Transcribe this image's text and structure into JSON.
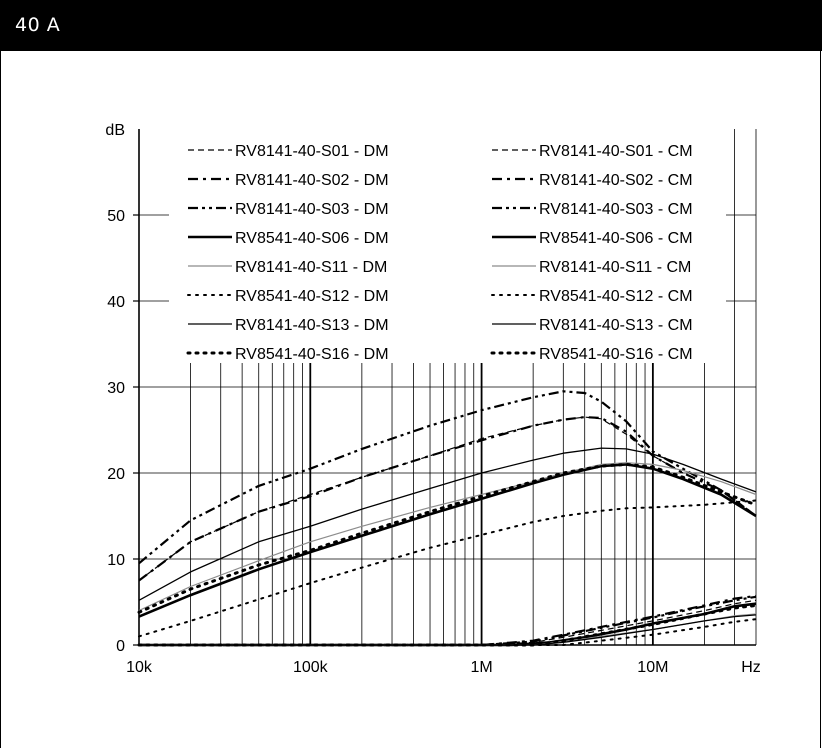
{
  "header": {
    "title": "40 A"
  },
  "chart_data": {
    "type": "line",
    "title": "",
    "xlabel": "Hz",
    "ylabel": "dB",
    "xscale": "log",
    "xlim": [
      10000,
      40000000
    ],
    "ylim": [
      0,
      60
    ],
    "x_ticks": [
      {
        "value": 10000,
        "label": "10k"
      },
      {
        "value": 100000,
        "label": "100k"
      },
      {
        "value": 1000000,
        "label": "1M"
      },
      {
        "value": 10000000,
        "label": "10M"
      }
    ],
    "y_ticks": [
      {
        "value": 0,
        "label": "0"
      },
      {
        "value": 10,
        "label": "10"
      },
      {
        "value": 20,
        "label": "20"
      },
      {
        "value": 30,
        "label": "30"
      },
      {
        "value": 40,
        "label": "40"
      },
      {
        "value": 50,
        "label": "50"
      }
    ],
    "grid": true,
    "legend_position": "top",
    "series": [
      {
        "name": "RV8141-40-S01 - DM",
        "style": "dash",
        "width": 1.2,
        "color": "#000000",
        "points": [
          [
            10000,
            7.5
          ],
          [
            20000,
            12
          ],
          [
            50000,
            15.5
          ],
          [
            100000,
            17.5
          ],
          [
            200000,
            19.5
          ],
          [
            500000,
            22
          ],
          [
            1000000,
            24
          ],
          [
            2000000,
            25.5
          ],
          [
            3000000,
            26.2
          ],
          [
            4000000,
            26.5
          ],
          [
            5000000,
            26.3
          ],
          [
            7000000,
            24.5
          ],
          [
            10000000,
            22
          ],
          [
            15000000,
            20
          ],
          [
            20000,
            12
          ]
        ]
      },
      {
        "name": "RV8141-40-S02 - DM",
        "style": "dashdot",
        "width": 2.2,
        "color": "#000000",
        "points": [
          [
            10000,
            7.5
          ],
          [
            20000,
            12
          ],
          [
            50000,
            15.5
          ],
          [
            100000,
            17.3
          ],
          [
            200000,
            19.5
          ],
          [
            500000,
            22
          ],
          [
            1000000,
            23.8
          ],
          [
            2000000,
            25.5
          ],
          [
            3000000,
            26.2
          ],
          [
            4000000,
            26.5
          ],
          [
            5000000,
            26.4
          ],
          [
            7000000,
            24.8
          ],
          [
            10000000,
            22
          ],
          [
            15000000,
            20
          ],
          [
            25000000,
            18
          ],
          [
            40000000,
            15
          ]
        ]
      },
      {
        "name": "RV8141-40-S03 - DM",
        "style": "dashdotdot",
        "width": 2.2,
        "color": "#000000",
        "points": [
          [
            10000,
            9.5
          ],
          [
            20000,
            14.5
          ],
          [
            50000,
            18.5
          ],
          [
            100000,
            20.5
          ],
          [
            200000,
            22.8
          ],
          [
            500000,
            25.5
          ],
          [
            1000000,
            27.3
          ],
          [
            2000000,
            28.8
          ],
          [
            3000000,
            29.5
          ],
          [
            4000000,
            29.3
          ],
          [
            5000000,
            28.3
          ],
          [
            7000000,
            26
          ],
          [
            10000000,
            22.5
          ],
          [
            15000000,
            20.5
          ],
          [
            25000000,
            18
          ],
          [
            40000000,
            15
          ]
        ]
      },
      {
        "name": "RV8541-40-S06 - DM",
        "style": "solid",
        "width": 2.6,
        "color": "#000000",
        "points": [
          [
            10000,
            3.3
          ],
          [
            20000,
            5.8
          ],
          [
            50000,
            8.8
          ],
          [
            100000,
            10.8
          ],
          [
            200000,
            12.7
          ],
          [
            500000,
            15.2
          ],
          [
            1000000,
            17
          ],
          [
            2000000,
            18.8
          ],
          [
            3000000,
            19.8
          ],
          [
            5000000,
            20.8
          ],
          [
            7000000,
            21
          ],
          [
            10000000,
            20.5
          ],
          [
            15000000,
            19.3
          ],
          [
            25000000,
            17.5
          ],
          [
            40000000,
            15
          ]
        ]
      },
      {
        "name": "RV8141-40-S11 - DM",
        "style": "solid",
        "width": 1.2,
        "color": "#8c8c8c",
        "points": [
          [
            10000,
            4
          ],
          [
            20000,
            6.8
          ],
          [
            50000,
            9.8
          ],
          [
            100000,
            12
          ],
          [
            200000,
            13.8
          ],
          [
            500000,
            16
          ],
          [
            1000000,
            17.5
          ],
          [
            2000000,
            19
          ],
          [
            3000000,
            20
          ],
          [
            5000000,
            21
          ],
          [
            7000000,
            21.2
          ],
          [
            10000000,
            21
          ],
          [
            15000000,
            20.3
          ],
          [
            25000000,
            19
          ],
          [
            40000000,
            17.5
          ]
        ]
      },
      {
        "name": "RV8541-40-S12 - DM",
        "style": "dot",
        "width": 2.0,
        "color": "#000000",
        "points": [
          [
            10000,
            1
          ],
          [
            20000,
            2.8
          ],
          [
            50000,
            5.3
          ],
          [
            100000,
            7.2
          ],
          [
            200000,
            9
          ],
          [
            500000,
            11.3
          ],
          [
            1000000,
            12.8
          ],
          [
            2000000,
            14.3
          ],
          [
            3000000,
            15
          ],
          [
            5000000,
            15.6
          ],
          [
            7000000,
            15.9
          ],
          [
            10000000,
            16
          ],
          [
            20000000,
            16.3
          ],
          [
            40000000,
            16.8
          ]
        ]
      },
      {
        "name": "RV8141-40-S13 - DM",
        "style": "solid",
        "width": 1.3,
        "color": "#000000",
        "points": [
          [
            10000,
            5.2
          ],
          [
            20000,
            8.5
          ],
          [
            50000,
            12
          ],
          [
            100000,
            13.8
          ],
          [
            200000,
            15.8
          ],
          [
            500000,
            18.2
          ],
          [
            1000000,
            20
          ],
          [
            2000000,
            21.5
          ],
          [
            3000000,
            22.3
          ],
          [
            5000000,
            22.9
          ],
          [
            7000000,
            22.8
          ],
          [
            10000000,
            22.2
          ],
          [
            15000000,
            21
          ],
          [
            25000000,
            19.3
          ],
          [
            40000000,
            17.8
          ]
        ]
      },
      {
        "name": "RV8541-40-S16 - DM",
        "style": "dot",
        "width": 3.0,
        "color": "#000000",
        "points": [
          [
            10000,
            3.8
          ],
          [
            20000,
            6.5
          ],
          [
            50000,
            9.3
          ],
          [
            100000,
            11
          ],
          [
            200000,
            13
          ],
          [
            500000,
            15.5
          ],
          [
            1000000,
            17.3
          ],
          [
            2000000,
            19
          ],
          [
            3000000,
            20
          ],
          [
            5000000,
            20.8
          ],
          [
            7000000,
            21
          ],
          [
            10000000,
            20.7
          ],
          [
            15000000,
            19.5
          ],
          [
            25000000,
            17.8
          ],
          [
            40000000,
            16.3
          ]
        ]
      },
      {
        "name": "RV8141-40-S01 - CM",
        "style": "dash",
        "width": 1.2,
        "color": "#000000",
        "points": [
          [
            10000,
            0
          ],
          [
            1000000,
            0
          ],
          [
            2000000,
            0.3
          ],
          [
            3000000,
            0.9
          ],
          [
            5000000,
            1.7
          ],
          [
            10000000,
            2.8
          ],
          [
            20000000,
            4
          ],
          [
            30000000,
            4.8
          ],
          [
            40000000,
            5.2
          ]
        ]
      },
      {
        "name": "RV8141-40-S02 - CM",
        "style": "dashdot",
        "width": 2.2,
        "color": "#000000",
        "points": [
          [
            10000,
            0
          ],
          [
            1000000,
            0
          ],
          [
            2000000,
            0.5
          ],
          [
            3000000,
            1.2
          ],
          [
            5000000,
            2.1
          ],
          [
            10000000,
            3.3
          ],
          [
            20000000,
            4.6
          ],
          [
            30000000,
            5.4
          ],
          [
            40000000,
            5.7
          ]
        ]
      },
      {
        "name": "RV8141-40-S03 - CM",
        "style": "dashdotdot",
        "width": 2.2,
        "color": "#000000",
        "points": [
          [
            10000,
            0
          ],
          [
            1000000,
            0
          ],
          [
            2000000,
            0.4
          ],
          [
            3000000,
            1.1
          ],
          [
            5000000,
            2
          ],
          [
            10000000,
            3.2
          ],
          [
            20000000,
            4.5
          ],
          [
            30000000,
            5.2
          ],
          [
            40000000,
            5.6
          ]
        ]
      },
      {
        "name": "RV8541-40-S06 - CM",
        "style": "solid",
        "width": 2.6,
        "color": "#000000",
        "points": [
          [
            10000,
            0
          ],
          [
            1500000,
            0
          ],
          [
            2500000,
            0.3
          ],
          [
            4000000,
            0.9
          ],
          [
            7000000,
            1.8
          ],
          [
            10000000,
            2.5
          ],
          [
            20000000,
            3.6
          ],
          [
            30000000,
            4.5
          ],
          [
            40000000,
            4.8
          ]
        ]
      },
      {
        "name": "RV8141-40-S11 - CM",
        "style": "solid",
        "width": 1.2,
        "color": "#8c8c8c",
        "points": [
          [
            10000,
            0
          ],
          [
            2000000,
            0
          ],
          [
            3000000,
            0.4
          ],
          [
            5000000,
            1
          ],
          [
            10000000,
            1.8
          ],
          [
            20000000,
            2.8
          ],
          [
            30000000,
            3.4
          ],
          [
            40000000,
            3.6
          ]
        ]
      },
      {
        "name": "RV8541-40-S12 - CM",
        "style": "dot",
        "width": 2.0,
        "color": "#000000",
        "points": [
          [
            10000,
            0
          ],
          [
            3000000,
            0
          ],
          [
            5000000,
            0.5
          ],
          [
            10000000,
            1.2
          ],
          [
            20000000,
            2.1
          ],
          [
            30000000,
            2.7
          ],
          [
            40000000,
            3
          ]
        ]
      },
      {
        "name": "RV8141-40-S13 - CM",
        "style": "solid",
        "width": 1.3,
        "color": "#000000",
        "points": [
          [
            10000,
            0
          ],
          [
            2000000,
            0
          ],
          [
            3000000,
            0.3
          ],
          [
            5000000,
            0.9
          ],
          [
            10000000,
            1.8
          ],
          [
            20000000,
            2.8
          ],
          [
            30000000,
            3.3
          ],
          [
            40000000,
            3.5
          ]
        ]
      },
      {
        "name": "RV8541-40-S16 - CM",
        "style": "dot",
        "width": 3.0,
        "color": "#000000",
        "points": [
          [
            10000,
            0
          ],
          [
            2000000,
            0
          ],
          [
            3000000,
            0.5
          ],
          [
            5000000,
            1.3
          ],
          [
            10000000,
            2.4
          ],
          [
            20000000,
            3.6
          ],
          [
            30000000,
            4.3
          ],
          [
            40000000,
            4.6
          ]
        ]
      }
    ]
  }
}
